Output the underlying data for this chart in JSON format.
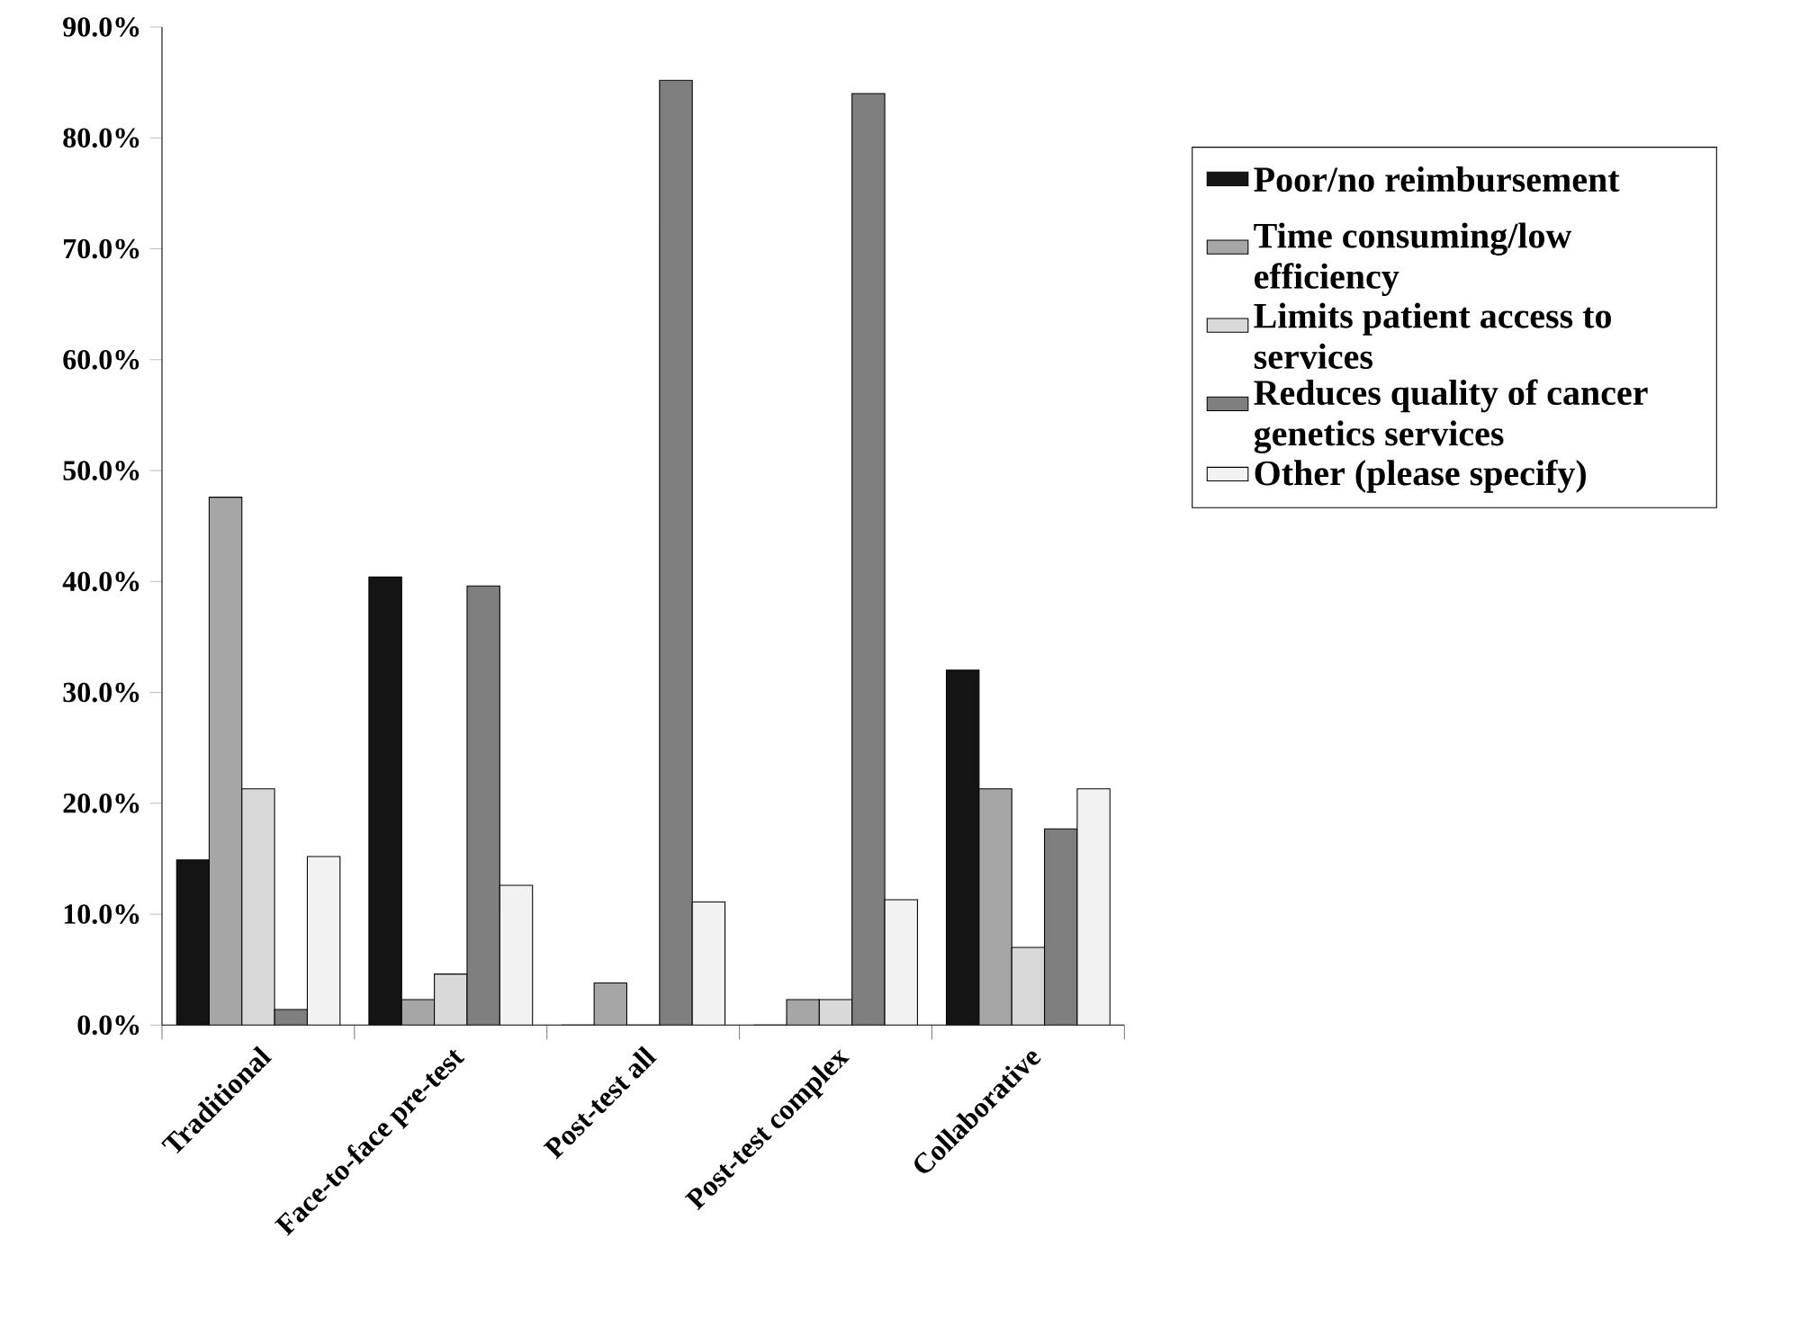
{
  "chart_data": {
    "type": "bar",
    "categories": [
      "Traditional",
      "Face-to-face pre-test",
      "Post-test all",
      "Post-test complex",
      "Collaborative"
    ],
    "series": [
      {
        "name": "Poor/no reimbursement",
        "color": "#141414",
        "values": [
          14.9,
          40.4,
          0,
          0,
          32.0
        ]
      },
      {
        "name": "Time consuming/low efficiency",
        "color": "#a6a6a6",
        "values": [
          47.6,
          2.3,
          3.8,
          2.3,
          21.3
        ]
      },
      {
        "name": "Limits patient access to services",
        "color": "#d9d9d9",
        "values": [
          21.3,
          4.6,
          0,
          2.3,
          7.0
        ]
      },
      {
        "name": "Reduces quality of cancer genetics services",
        "color": "#7f7f7f",
        "values": [
          1.4,
          39.6,
          85.2,
          84.0,
          17.7
        ]
      },
      {
        "name": "Other (please specify)",
        "color": "#f2f2f2",
        "values": [
          15.2,
          12.6,
          11.1,
          11.3,
          21.3
        ]
      }
    ],
    "ylim": [
      0,
      90
    ],
    "yticks": [
      {
        "value": 0,
        "label": "0.0%"
      },
      {
        "value": 10,
        "label": "10.0%"
      },
      {
        "value": 20,
        "label": "20.0%"
      },
      {
        "value": 30,
        "label": "30.0%"
      },
      {
        "value": 40,
        "label": "40.0%"
      },
      {
        "value": 50,
        "label": "50.0%"
      },
      {
        "value": 60,
        "label": "60.0%"
      },
      {
        "value": 70,
        "label": "70.0%"
      },
      {
        "value": 80,
        "label": "80.0%"
      },
      {
        "value": 90,
        "label": "90.0%"
      }
    ],
    "legend": "right"
  }
}
